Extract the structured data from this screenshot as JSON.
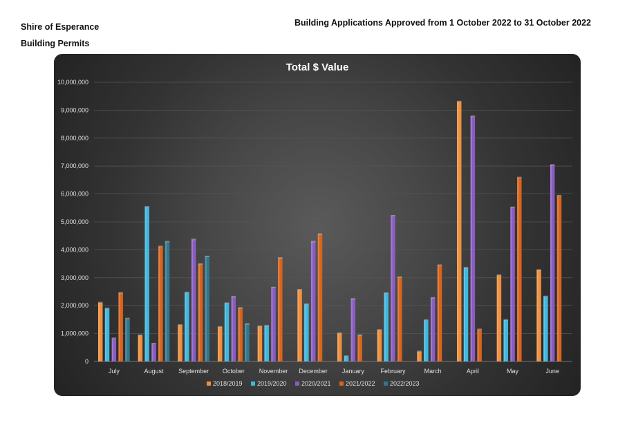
{
  "header": {
    "org": "Shire of Esperance",
    "subtitle": "Building Permits",
    "report_title": "Building Applications Approved from 1 October 2022 to 31 October 2022"
  },
  "chart_data": {
    "type": "bar",
    "title": "Total $ Value",
    "categories": [
      "July",
      "August",
      "September",
      "October",
      "November",
      "December",
      "January",
      "February",
      "March",
      "April",
      "May",
      "June"
    ],
    "ylim": [
      0,
      10000000
    ],
    "ytick_step": 1000000,
    "ytick_labels": [
      "0",
      "1,000,000",
      "2,000,000",
      "3,000,000",
      "4,000,000",
      "5,000,000",
      "6,000,000",
      "7,000,000",
      "8,000,000",
      "9,000,000",
      "10,000,000"
    ],
    "grid": true,
    "legend_position": "bottom",
    "series": [
      {
        "name": "2018/2019",
        "color": "#f0903c",
        "values": [
          2100000,
          930000,
          1300000,
          1230000,
          1250000,
          2560000,
          1000000,
          1120000,
          350000,
          9300000,
          3080000,
          3270000
        ]
      },
      {
        "name": "2019/2020",
        "color": "#3fb8e0",
        "values": [
          1890000,
          5530000,
          2460000,
          2080000,
          1270000,
          2040000,
          180000,
          2440000,
          1470000,
          3350000,
          1480000,
          2320000
        ]
      },
      {
        "name": "2020/2021",
        "color": "#8a5cc2",
        "values": [
          820000,
          630000,
          4360000,
          2310000,
          2640000,
          4280000,
          2230000,
          5210000,
          2270000,
          8770000,
          5510000,
          7030000
        ]
      },
      {
        "name": "2021/2022",
        "color": "#d9641c",
        "values": [
          2450000,
          4110000,
          3480000,
          1910000,
          3700000,
          4550000,
          930000,
          3010000,
          3440000,
          1140000,
          6580000,
          5930000
        ]
      },
      {
        "name": "2022/2023",
        "color": "#2e7890",
        "values": [
          1530000,
          4280000,
          3750000,
          1330000,
          null,
          null,
          null,
          null,
          null,
          null,
          null,
          null
        ]
      }
    ]
  }
}
